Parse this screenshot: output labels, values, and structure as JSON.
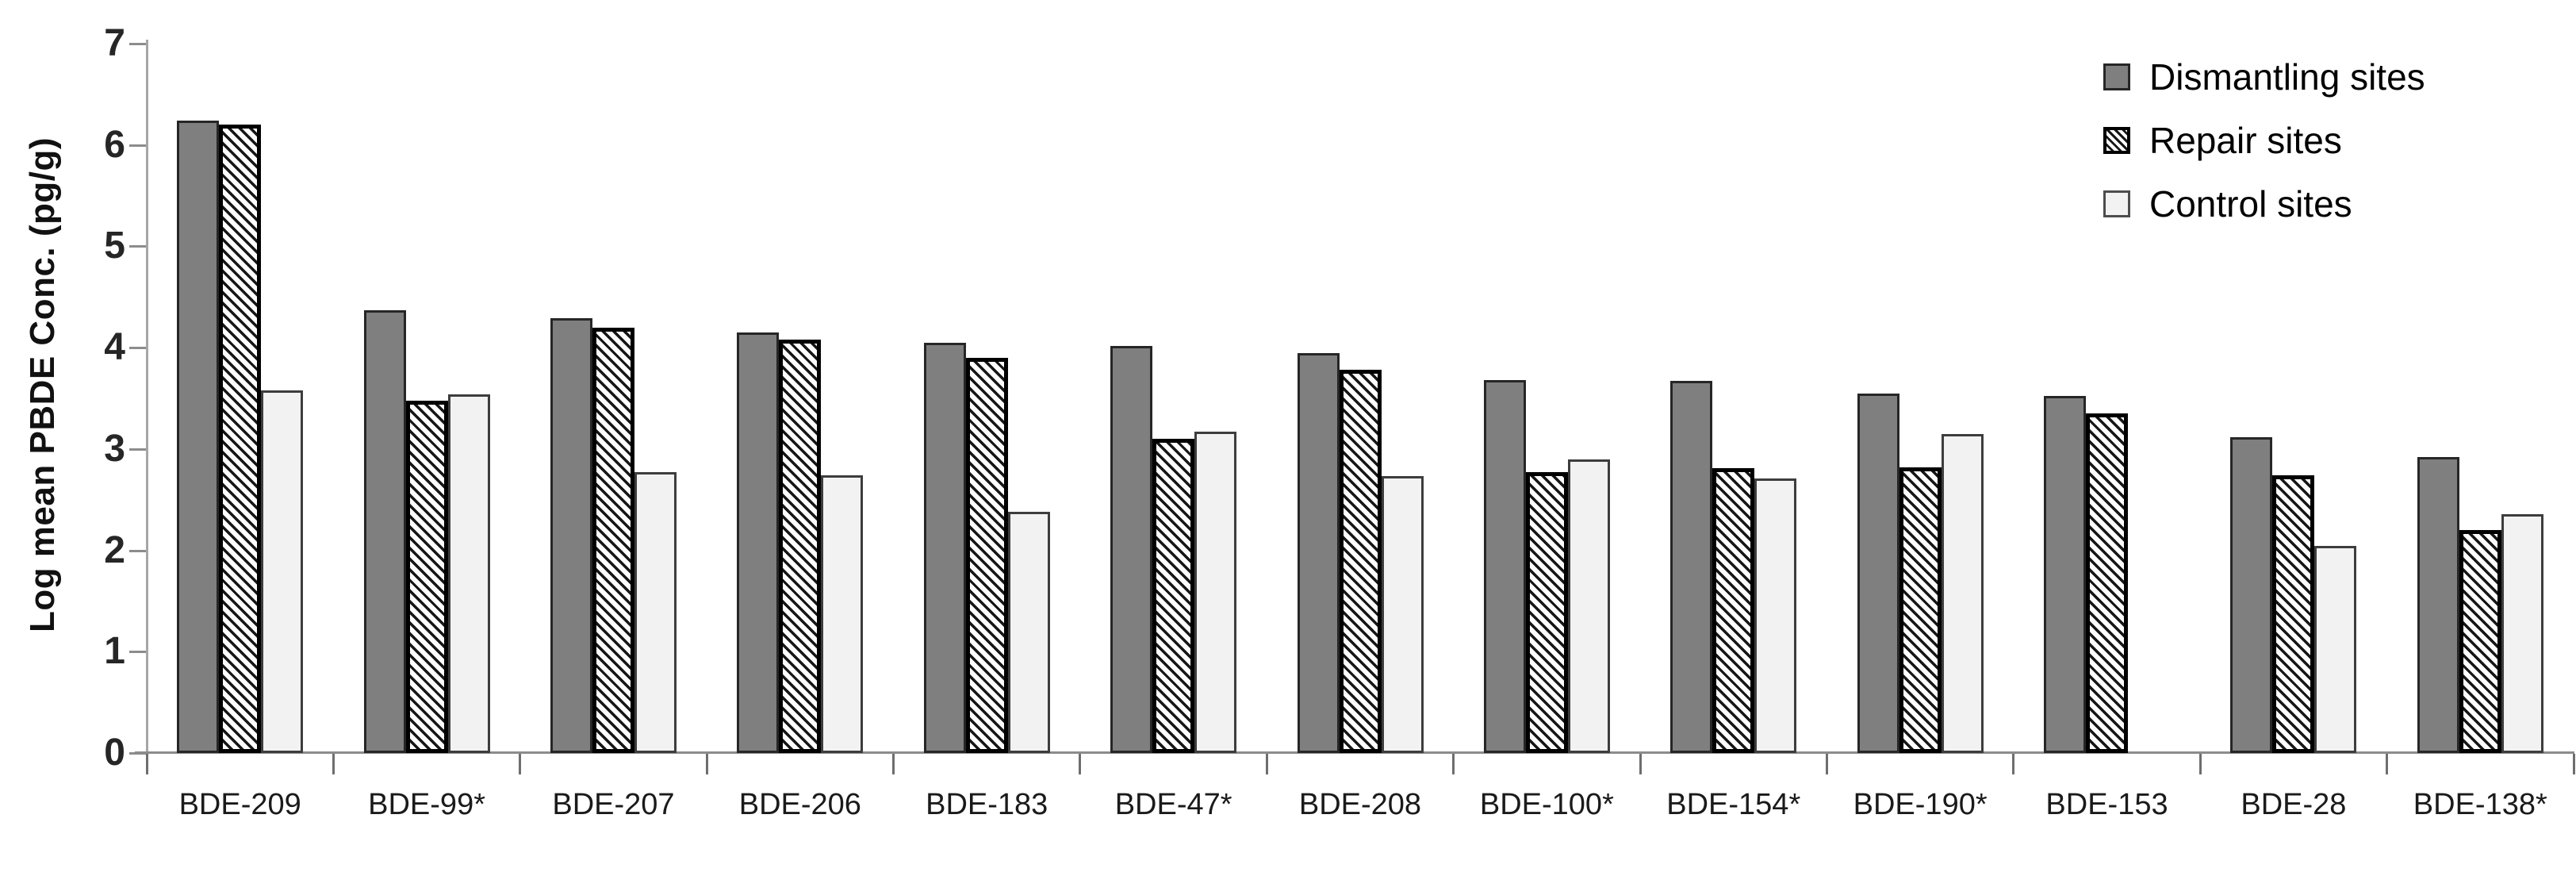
{
  "chart_data": {
    "type": "bar",
    "title": "",
    "xlabel": "",
    "ylabel": "Log mean PBDE Conc. (pg/g)",
    "ylim": [
      0,
      7
    ],
    "yticks": [
      0,
      1,
      2,
      3,
      4,
      5,
      6,
      7
    ],
    "grid": false,
    "legend_position": "top-right",
    "categories": [
      "BDE-209",
      "BDE-99*",
      "BDE-207",
      "BDE-206",
      "BDE-183",
      "BDE-47*",
      "BDE-208",
      "BDE-100*",
      "BDE-154*",
      "BDE-190*",
      "BDE-153",
      "BDE-28",
      "BDE-138*"
    ],
    "series": [
      {
        "name": "Dismantling sites",
        "style": "dismantling",
        "values": [
          6.24,
          4.37,
          4.29,
          4.15,
          4.05,
          4.02,
          3.95,
          3.68,
          3.67,
          3.55,
          3.52,
          3.12,
          2.92
        ]
      },
      {
        "name": "Repair sites",
        "style": "repair",
        "values": [
          6.2,
          3.48,
          4.2,
          4.08,
          3.9,
          3.1,
          3.78,
          2.77,
          2.81,
          2.82,
          3.35,
          2.74,
          2.2
        ]
      },
      {
        "name": "Control sites",
        "style": "control",
        "values": [
          3.58,
          3.54,
          2.77,
          2.74,
          2.38,
          3.17,
          2.73,
          2.9,
          2.71,
          3.15,
          null,
          2.04,
          2.36
        ]
      }
    ],
    "colors": {
      "dismantling_fill": "#7f7f7f",
      "dismantling_border": "#262626",
      "repair_hatch": "#161616",
      "repair_background": "#fdfdfd",
      "repair_border": "#000000",
      "control_fill": "#f2f2f2",
      "control_border": "#3d3d3d",
      "axis_line": "#a6a6a6",
      "tick_mark": "#6e6e6e",
      "text": "#1a1a1a"
    }
  }
}
